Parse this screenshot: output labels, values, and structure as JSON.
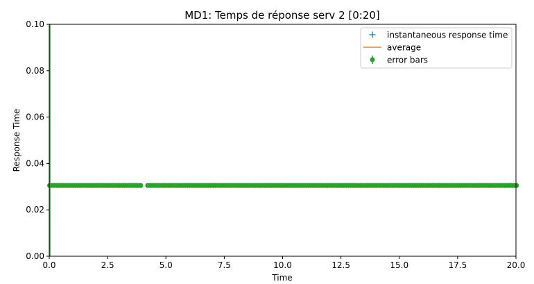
{
  "chart_data": {
    "type": "scatter",
    "title": "MD1: Temps de réponse serv 2 [0:20]",
    "xlabel": "Time",
    "ylabel": "Response Time",
    "xlim": [
      0,
      20
    ],
    "ylim": [
      0,
      0.1
    ],
    "xticks": [
      0,
      2.5,
      5,
      7.5,
      10,
      12.5,
      15,
      17.5,
      20
    ],
    "xtick_labels": [
      "0.0",
      "2.5",
      "5.0",
      "7.5",
      "10.0",
      "12.5",
      "15.0",
      "17.5",
      "20.0"
    ],
    "yticks": [
      0,
      0.02,
      0.04,
      0.06,
      0.08,
      0.1
    ],
    "ytick_labels": [
      "0.00",
      "0.02",
      "0.04",
      "0.06",
      "0.08",
      "0.10"
    ],
    "grid": false,
    "legend_position": "top-right",
    "series": [
      {
        "name": "instantaneous response time",
        "kind": "plus-marker",
        "color": "#1f77b4",
        "x": [],
        "y": []
      },
      {
        "name": "average",
        "kind": "line",
        "color": "#ff7f0e",
        "x": [],
        "y": []
      },
      {
        "name": "error bars",
        "kind": "errorbar-marker",
        "color": "#2ca02c",
        "y_constant": 0.0305,
        "x_start": 0.02,
        "x_end": 20.0,
        "x_step": 0.1,
        "gaps": [
          [
            3.95,
            4.15
          ]
        ]
      }
    ],
    "vertical_error_bar": {
      "x": 0.02,
      "y_low": 0,
      "y_high": 0.1,
      "color": "#2ca02c"
    },
    "colors": {
      "axes": "#000000",
      "background": "#ffffff"
    }
  }
}
